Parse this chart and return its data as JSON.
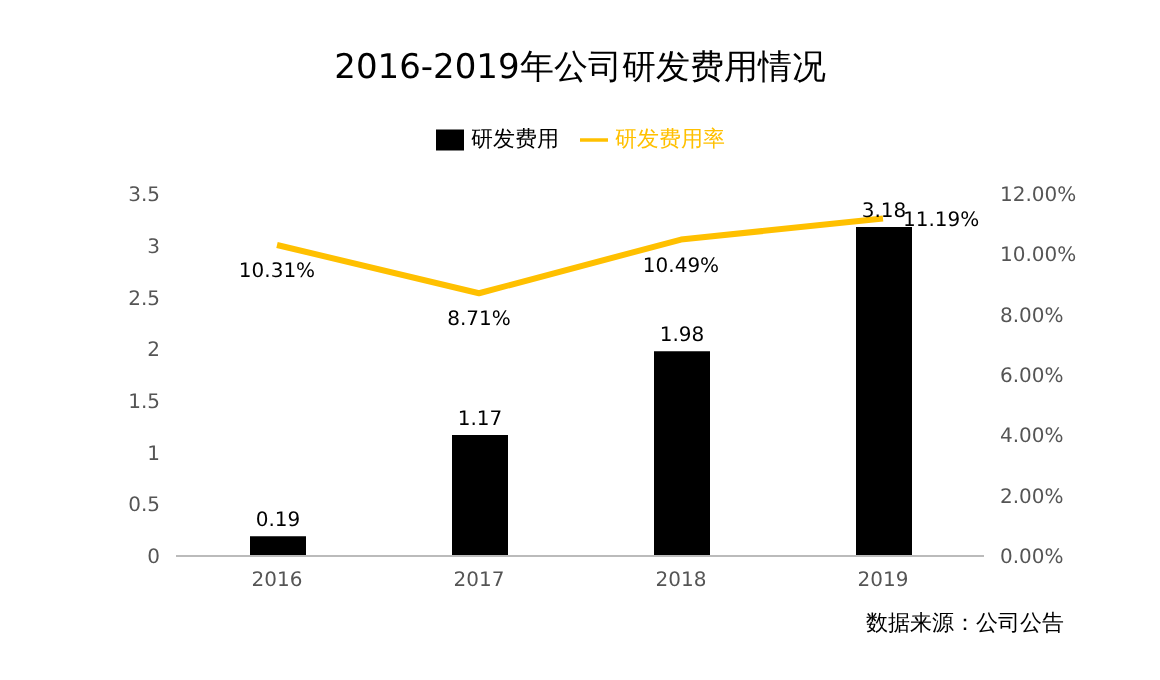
{
  "chart_data": {
    "type": "bar",
    "title": "2016-2019年公司研发费用情况",
    "categories": [
      "2016",
      "2017",
      "2018",
      "2019"
    ],
    "series": [
      {
        "name": "研发费用",
        "color": "#000000",
        "values": [
          0.19,
          1.17,
          1.98,
          3.18
        ],
        "value_labels": [
          "0.19",
          "1.17",
          "1.98",
          "3.18"
        ]
      },
      {
        "name": "研发费用率",
        "type": "line",
        "axis": "y2",
        "color": "#ffc000",
        "values": [
          10.31,
          8.71,
          10.49,
          11.19
        ],
        "value_labels": [
          "10.31%",
          "8.71%",
          "10.49%",
          "11.19%"
        ]
      }
    ],
    "ylim": [
      0,
      3.5
    ],
    "yticks": [
      0,
      0.5,
      1,
      1.5,
      2,
      2.5,
      3,
      3.5
    ],
    "y2lim": [
      0,
      12
    ],
    "y2ticks": [
      {
        "value": 0,
        "label": "0.00%"
      },
      {
        "value": 2,
        "label": "2.00%"
      },
      {
        "value": 4,
        "label": "4.00%"
      },
      {
        "value": 6,
        "label": "6.00%"
      },
      {
        "value": 8,
        "label": "8.00%"
      },
      {
        "value": 10,
        "label": "10.00%"
      },
      {
        "value": 12,
        "label": "12.00%"
      }
    ],
    "grid": false,
    "legend": "top",
    "marker": "none",
    "annotations": [
      "数据来源：公司公告"
    ]
  }
}
